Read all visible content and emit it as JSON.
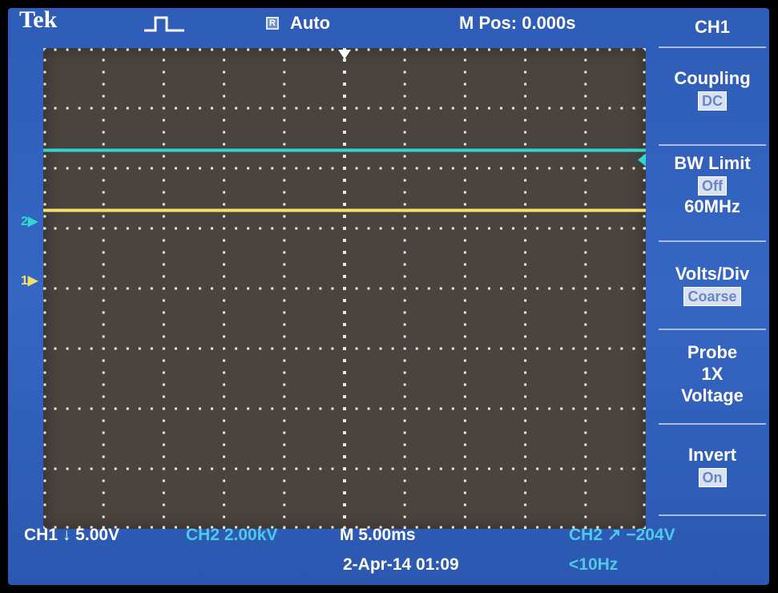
{
  "header": {
    "brand": "Tek",
    "trigger_state_icon": "acquisition-pulse-icon",
    "run_indicator": "R",
    "trigger_mode": "Auto",
    "main_position": "M Pos: 0.000s"
  },
  "menu": {
    "title": "CH1",
    "coupling": {
      "label": "Coupling",
      "value": "DC"
    },
    "bw_limit": {
      "label": "BW Limit",
      "value": "Off",
      "freq": "60MHz"
    },
    "volts_div": {
      "label": "Volts/Div",
      "value": "Coarse"
    },
    "probe": {
      "label": "Probe",
      "attenuation": "1X",
      "type": "Voltage"
    },
    "invert": {
      "label": "Invert",
      "value": "On"
    }
  },
  "traces": {
    "ch2_marker": "2",
    "ch1_marker": "1",
    "ch2_color": "#33d6cf",
    "ch1_color": "#f3e06a",
    "ch2_level_divs": 2.3,
    "ch1_level_divs": 1.3
  },
  "status": {
    "ch1_scale": "CH1 ↓ 5.00V",
    "ch2_scale": "CH2  2.00kV",
    "timebase": "M 5.00ms",
    "trigger": "CH2 ↗ −204V",
    "date": "2-Apr-14 01:09",
    "trigger_freq": "<10Hz"
  },
  "colors": {
    "screen_blue": "#3566c3",
    "graticule_bg": "#4a4440",
    "ch2_status": "#4fc9e8"
  }
}
